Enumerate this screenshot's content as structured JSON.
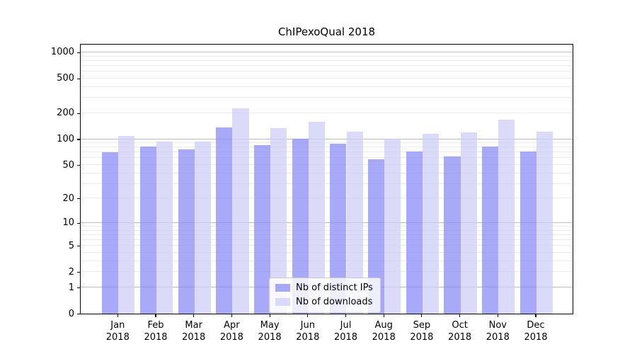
{
  "chart_data": {
    "type": "bar",
    "title": "ChIPexoQual 2018",
    "categories": [
      "Jan",
      "Feb",
      "Mar",
      "Apr",
      "May",
      "Jun",
      "Jul",
      "Aug",
      "Sep",
      "Oct",
      "Nov",
      "Dec"
    ],
    "year": "2018",
    "series": [
      {
        "name": "Nb of distinct IPs",
        "values": [
          71,
          82,
          76,
          137,
          85,
          101,
          89,
          58,
          72,
          63,
          82,
          72
        ]
      },
      {
        "name": "Nb of downloads",
        "values": [
          108,
          94,
          93,
          225,
          133,
          160,
          123,
          101,
          116,
          119,
          169,
          121
        ]
      }
    ],
    "y_ticks": [
      0,
      1,
      2,
      5,
      10,
      20,
      50,
      100,
      200,
      500,
      1000
    ],
    "y_scale": "log1p",
    "ylim": [
      0,
      1260
    ],
    "xlabel": "",
    "ylabel": "",
    "grid": true,
    "legend_position": "lower-center"
  },
  "legend": {
    "items": [
      {
        "label": "Nb of distinct IPs",
        "series_index": 0
      },
      {
        "label": "Nb of downloads",
        "series_index": 1
      }
    ]
  },
  "colors": {
    "bar_distinct_ips": "#a9a9f9",
    "bar_downloads": "#dbdbf9",
    "bar_distinct_ips_rgba": "rgba(137,137,247,0.73)",
    "bar_downloads_rgba": "rgba(206,206,247,0.73)",
    "gridline_major": "#bdbdbd",
    "gridline_minor": "#ececec",
    "axis": "#000000",
    "legend_border": "#cccccc",
    "text": "#000000"
  }
}
